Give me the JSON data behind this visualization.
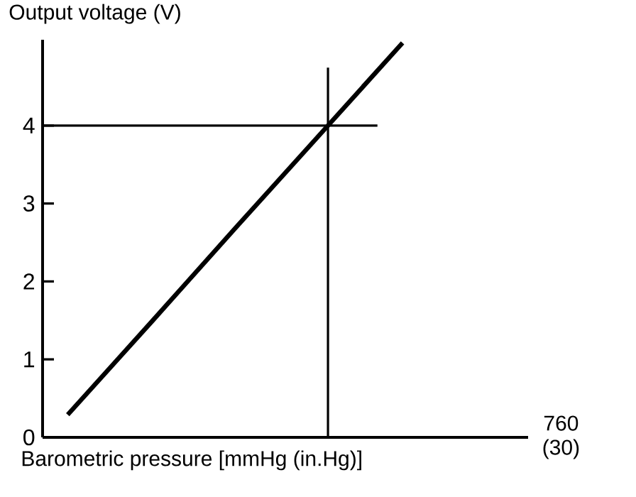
{
  "chart_data": {
    "type": "line",
    "ylabel": "Output voltage (V)",
    "xlabel": "Barometric pressure [mmHg (in.Hg)]",
    "annotations": [
      "760 (30)"
    ],
    "categories": [
      null,
      null,
      null,
      null,
      null
    ],
    "series": [
      {
        "color": "#000000",
        "values": [
          0.29,
          1.48,
          2.68,
          3.87,
          5.06
        ]
      }
    ],
    "ylim": [
      0,
      5.1
    ],
    "yticks": [
      0,
      1,
      2,
      3,
      4
    ],
    "ref_lines": [
      {
        "axis": "y",
        "value": 4,
        "color": "#000000"
      }
    ],
    "grid": false,
    "legend": false,
    "marker": "none",
    "line_style": "solid"
  }
}
